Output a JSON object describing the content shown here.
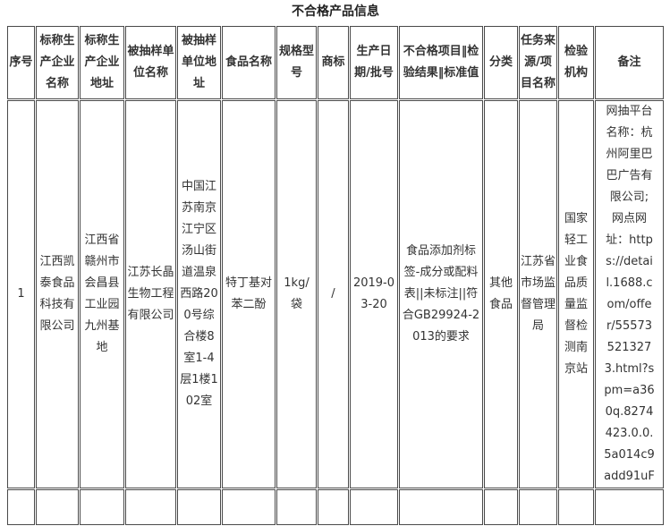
{
  "title": "不合格产品信息",
  "table": {
    "headers": [
      "序号",
      "标称生产企业名称",
      "标称生产企业地址",
      "被抽样单位名称",
      "被抽样单位地址",
      "食品名称",
      "规格型号",
      "商标",
      "生产日期/批号",
      "不合格项目‖检验结果‖标准值",
      "分类",
      "任务来源/项目名称",
      "检验机构",
      "备注"
    ],
    "rows": [
      [
        "1",
        "江西凯泰食品科技有限公司",
        "江西省赣州市会昌县工业园九州基地",
        "江苏长晶生物工程有限公司",
        "中国江苏南京江宁区汤山街道温泉西路200号综合楼8室1-4层1楼102室",
        "特丁基对苯二酚",
        "1kg/袋",
        "/",
        "2019-03-20",
        "食品添加剂标签-成分或配料表||未标注||符合GB29924-2013的要求",
        "其他食品",
        "江苏省市场监督管理局",
        "国家轻工业食品质量监督检测南京站",
        "网抽平台名称：杭州阿里巴巴广告有限公司;\n网点网址：https://detail.1688.com/offer/555735213273.html?spm=a360q.8274423.0.0.5a014c9add91uF"
      ],
      [
        "",
        "",
        "",
        "",
        "",
        "",
        "",
        "",
        "",
        "",
        "",
        "",
        "",
        ""
      ]
    ]
  },
  "colors": {
    "text": "#333333",
    "border": "#4a4a4a",
    "background": "#ffffff"
  }
}
